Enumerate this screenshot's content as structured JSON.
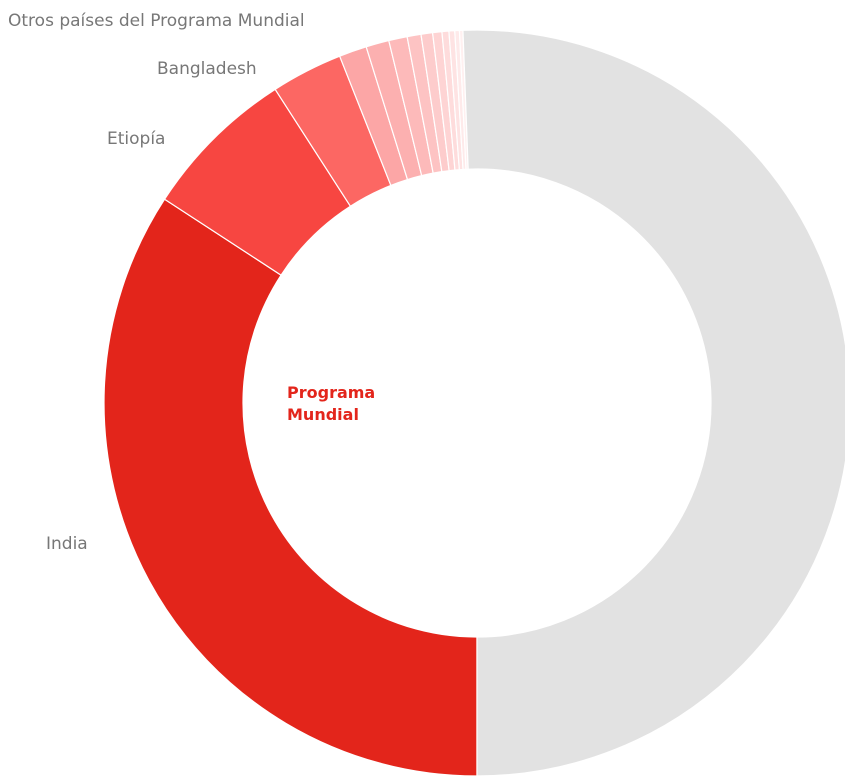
{
  "chart_data": {
    "type": "donut",
    "center_label": "Programa Mundial",
    "annotation": "Otros países del Programa Mundial",
    "categories": [
      "India",
      "Etiopía",
      "Bangladesh",
      null,
      null,
      null,
      null,
      null,
      null,
      null,
      null,
      null,
      null,
      null
    ],
    "values": [
      34.2,
      6.7,
      3.1,
      1.2,
      1.0,
      0.8,
      0.6,
      0.5,
      0.4,
      0.3,
      0.25,
      0.2,
      0.15,
      50.6
    ],
    "colors": [
      "#e3251b",
      "#f74641",
      "#fc6763",
      "#fca6a6",
      "#fcb0b0",
      "#fdbaba",
      "#fdc3c3",
      "#fdcccc",
      "#fed4d4",
      "#fedcdc",
      "#fee3e3",
      "#feeaea",
      "#fff0f0",
      "#e2e2e2"
    ]
  }
}
